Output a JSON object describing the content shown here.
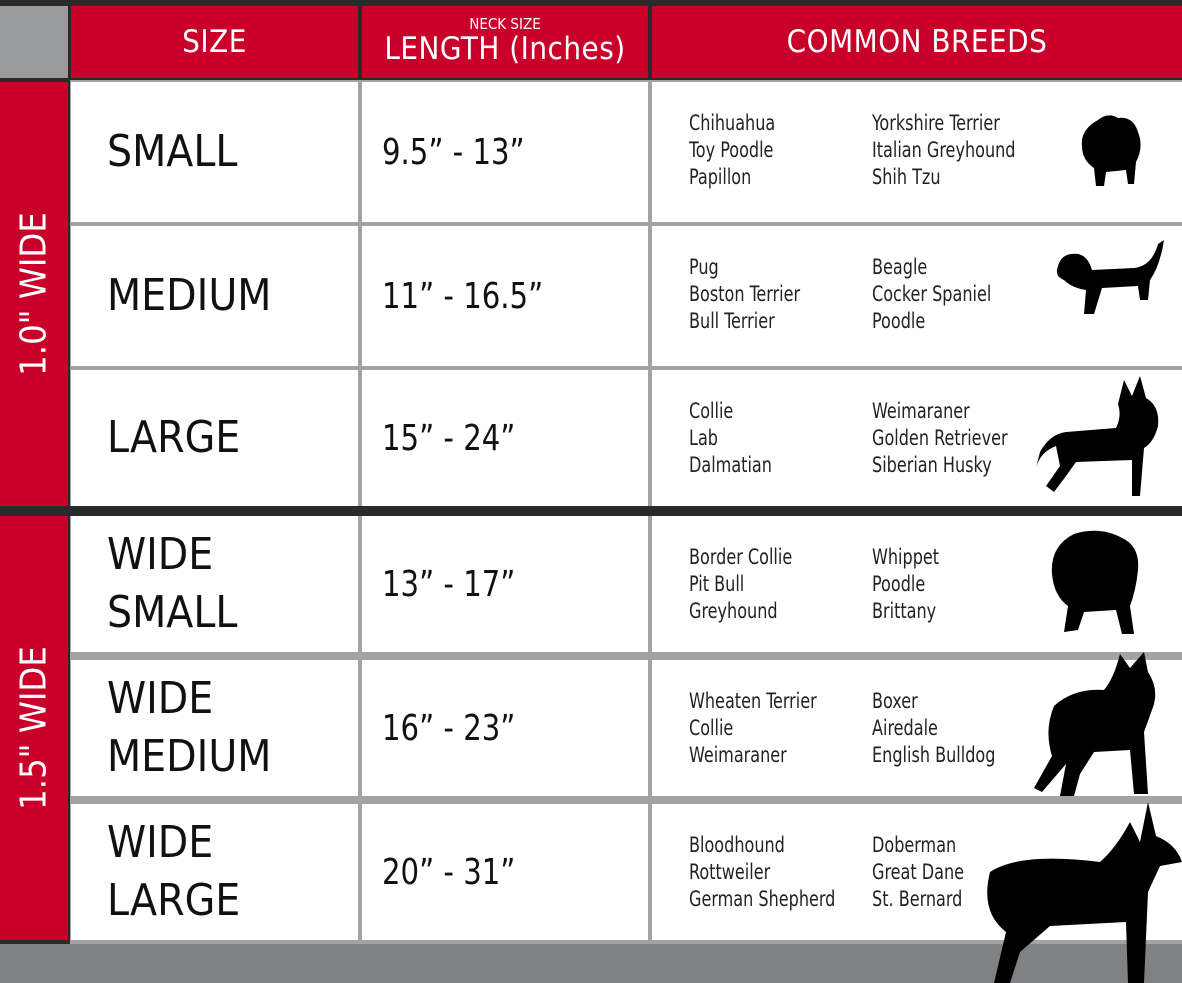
{
  "header": {
    "size": "SIZE",
    "length_small": "NECK SIZE",
    "length": "LENGTH (Inches)",
    "breeds": "COMMON BREEDS"
  },
  "groups": [
    {
      "label": "1.0\" WIDE"
    },
    {
      "label": "1.5\" WIDE"
    }
  ],
  "rows": [
    {
      "size": "SMALL",
      "length": "9.5” - 13”",
      "breeds_a": [
        "Chihuahua",
        "Toy Poodle",
        "Papillon"
      ],
      "breeds_b": [
        "Yorkshire Terrier",
        "Italian Greyhound",
        "Shih Tzu"
      ],
      "icon": "small-dog-silhouette-icon"
    },
    {
      "size": "MEDIUM",
      "length": "11” - 16.5”",
      "breeds_a": [
        "Pug",
        "Boston Terrier",
        "Bull Terrier"
      ],
      "breeds_b": [
        "Beagle",
        "Cocker Spaniel",
        "Poodle"
      ],
      "icon": "dachshund-silhouette-icon"
    },
    {
      "size": "LARGE",
      "length": "15” - 24”",
      "breeds_a": [
        "Collie",
        "Lab",
        "Dalmatian"
      ],
      "breeds_b": [
        "Weimaraner",
        "Golden Retriever",
        "Siberian Husky"
      ],
      "icon": "large-dog-silhouette-icon"
    },
    {
      "size": "WIDE SMALL",
      "length": "13” - 17”",
      "breeds_a": [
        "Border Collie",
        "Pit Bull",
        "Greyhound"
      ],
      "breeds_b": [
        "Whippet",
        "Poodle",
        "Brittany"
      ],
      "icon": "bulldog-silhouette-icon"
    },
    {
      "size": "WIDE MEDIUM",
      "length": "16” - 23”",
      "breeds_a": [
        "Wheaten Terrier",
        "Collie",
        "Weimaraner"
      ],
      "breeds_b": [
        "Boxer",
        "Airedale",
        "English Bulldog"
      ],
      "icon": "pitbull-silhouette-icon"
    },
    {
      "size": "WIDE LARGE",
      "length": "20” - 31”",
      "breeds_a": [
        "Bloodhound",
        "Rottweiler",
        "German Shepherd"
      ],
      "breeds_b": [
        "Doberman",
        "Great Dane",
        "St. Bernard"
      ],
      "icon": "doberman-silhouette-icon"
    }
  ],
  "colors": {
    "accent": "#c8002a",
    "corner": "#9a9b9d",
    "footer": "#808184"
  }
}
